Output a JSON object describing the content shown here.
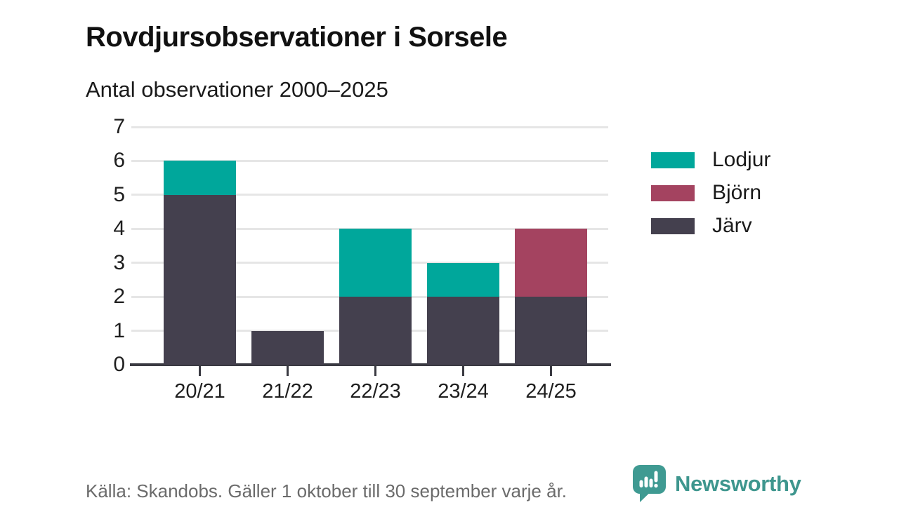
{
  "header": {
    "title": "Rovdjursobservationer i Sorsele",
    "subtitle": "Antal observationer 2000–2025"
  },
  "chart_data": {
    "type": "bar",
    "stacked": true,
    "title": "Rovdjursobservationer i Sorsele",
    "subtitle": "Antal observationer 2000–2025",
    "categories": [
      "20/21",
      "21/22",
      "22/23",
      "23/24",
      "24/25"
    ],
    "series": [
      {
        "name": "Lodjur",
        "color": "#00a79b",
        "values": [
          1,
          0,
          2,
          1,
          0
        ]
      },
      {
        "name": "Björn",
        "color": "#a44360",
        "values": [
          0,
          0,
          0,
          0,
          2
        ]
      },
      {
        "name": "Järv",
        "color": "#44404e",
        "values": [
          5,
          1,
          2,
          2,
          2
        ]
      }
    ],
    "stack_order_bottom_to_top": [
      "Järv",
      "Björn",
      "Lodjur"
    ],
    "totals": [
      6,
      1,
      4,
      3,
      4
    ],
    "xlabel": "",
    "ylabel": "",
    "ylim": [
      0,
      7
    ],
    "yticks": [
      0,
      1,
      2,
      3,
      4,
      5,
      6,
      7
    ],
    "grid": "horizontal",
    "legend_position": "right"
  },
  "footer": {
    "source": "Källa: Skandobs. Gäller 1 oktober till 30 september varje år.",
    "brand": "Newsworthy"
  },
  "colors": {
    "accent_teal": "#00a79b",
    "accent_berry": "#a44360",
    "accent_dark": "#44404e",
    "axis": "#3a3a42",
    "grid": "#e6e6e6",
    "logo_teal": "#3f9a92",
    "brand_text": "#3e968e",
    "footer_text": "#6b6b6b"
  }
}
